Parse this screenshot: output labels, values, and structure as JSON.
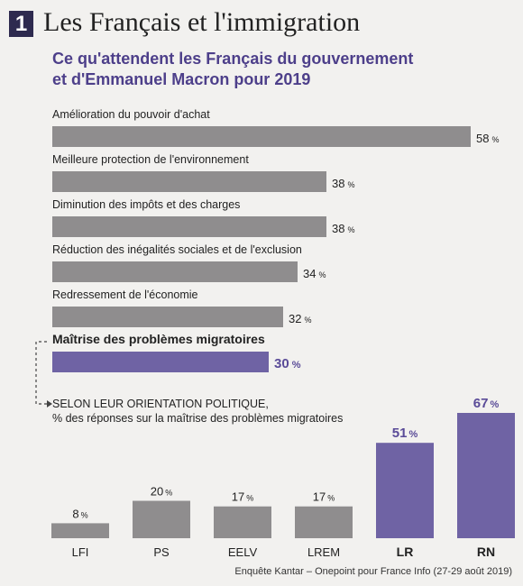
{
  "header": {
    "number": "1",
    "title": "Les Français et l'immigration",
    "subtitle_line1": "Ce qu'attendent les Français du gouvernement",
    "subtitle_line2": "et d'Emmanuel Macron pour 2019"
  },
  "section2": {
    "line1": "SELON LEUR ORIENTATION POLITIQUE,",
    "line2": "% des réponses sur la maîtrise des problèmes migratoires"
  },
  "source": "Enquête Kantar – Onepoint pour France Info (27-29 août 2019)",
  "colors": {
    "gray": "#8f8d8e",
    "purple": "#6f63a4",
    "purple_text": "#5a4b98",
    "title_purple": "#4d3f8a"
  },
  "chart_data": [
    {
      "type": "bar",
      "orientation": "horizontal",
      "unit": "%",
      "categories": [
        "Amélioration du pouvoir d'achat",
        "Meilleure protection de l'environnement",
        "Diminution des impôts et des charges",
        "Réduction des inégalités sociales et de l'exclusion",
        "Redressement de l'économie",
        "Maîtrise des problèmes migratoires"
      ],
      "values": [
        58,
        38,
        38,
        34,
        32,
        30
      ],
      "highlight_index": 5
    },
    {
      "type": "bar",
      "orientation": "vertical",
      "unit": "%",
      "categories": [
        "LFI",
        "PS",
        "EELV",
        "LREM",
        "LR",
        "RN"
      ],
      "values": [
        8,
        20,
        17,
        17,
        51,
        67
      ],
      "highlight_indices": [
        4,
        5
      ]
    }
  ]
}
